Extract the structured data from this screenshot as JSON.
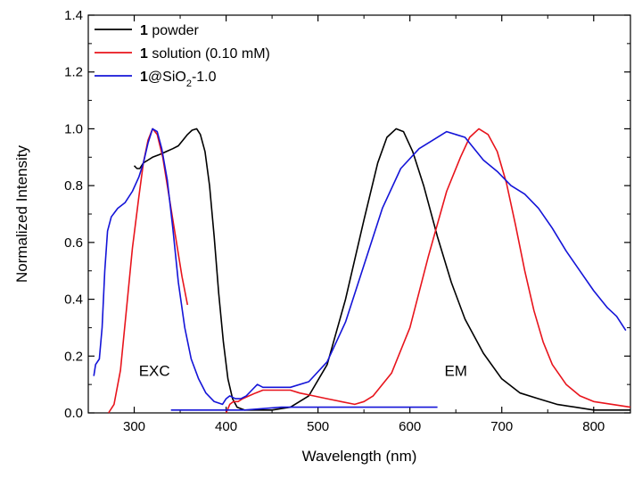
{
  "chart_data": {
    "type": "line",
    "title": "",
    "xlabel": "Wavelength (nm)",
    "ylabel": "Normalized Intensity",
    "xlim": [
      250,
      840
    ],
    "ylim": [
      0.0,
      1.4
    ],
    "x_ticks": [
      300,
      400,
      500,
      600,
      700,
      800
    ],
    "y_ticks": [
      0.0,
      0.2,
      0.4,
      0.6,
      0.8,
      1.0,
      1.2,
      1.4
    ],
    "x_tick_labels": [
      "300",
      "400",
      "500",
      "600",
      "700",
      "800"
    ],
    "y_tick_labels": [
      "0.0",
      "0.2",
      "0.4",
      "0.6",
      "0.8",
      "1.0",
      "1.2",
      "1.4"
    ],
    "grid": false,
    "legend_position": "top-left",
    "annotations": [
      {
        "text": "EXC",
        "x": 322,
        "y": 0.13
      },
      {
        "text": "EM",
        "x": 650,
        "y": 0.13
      }
    ],
    "series": [
      {
        "name": "powder",
        "legend_bold": "1",
        "legend_rest": "powder",
        "color": "#000000",
        "segments": [
          [
            [
              300,
              0.87
            ],
            [
              303,
              0.86
            ],
            [
              306,
              0.86
            ],
            [
              310,
              0.88
            ],
            [
              315,
              0.89
            ],
            [
              320,
              0.9
            ],
            [
              328,
              0.91
            ],
            [
              335,
              0.92
            ],
            [
              342,
              0.93
            ],
            [
              348,
              0.94
            ],
            [
              353,
              0.96
            ],
            [
              358,
              0.98
            ],
            [
              363,
              0.995
            ],
            [
              368,
              1.0
            ],
            [
              372,
              0.98
            ],
            [
              377,
              0.92
            ],
            [
              382,
              0.8
            ],
            [
              387,
              0.62
            ],
            [
              392,
              0.42
            ],
            [
              397,
              0.25
            ],
            [
              402,
              0.12
            ],
            [
              407,
              0.05
            ],
            [
              412,
              0.02
            ],
            [
              420,
              0.01
            ],
            [
              430,
              0.01
            ]
          ],
          [
            [
              430,
              0.01
            ],
            [
              450,
              0.01
            ],
            [
              470,
              0.02
            ],
            [
              490,
              0.06
            ],
            [
              510,
              0.17
            ],
            [
              530,
              0.4
            ],
            [
              550,
              0.68
            ],
            [
              565,
              0.88
            ],
            [
              575,
              0.97
            ],
            [
              585,
              1.0
            ],
            [
              593,
              0.99
            ],
            [
              603,
              0.92
            ],
            [
              615,
              0.8
            ],
            [
              630,
              0.62
            ],
            [
              645,
              0.46
            ],
            [
              660,
              0.33
            ],
            [
              680,
              0.21
            ],
            [
              700,
              0.12
            ],
            [
              720,
              0.07
            ],
            [
              740,
              0.05
            ],
            [
              760,
              0.03
            ],
            [
              780,
              0.02
            ],
            [
              800,
              0.01
            ],
            [
              820,
              0.01
            ],
            [
              840,
              0.01
            ]
          ]
        ]
      },
      {
        "name": "solution (0.10 mM)",
        "legend_bold": "1",
        "legend_rest": "solution (0.10 mM)",
        "color": "#e8141c",
        "segments": [
          [
            [
              272,
              0.0
            ],
            [
              278,
              0.03
            ],
            [
              285,
              0.15
            ],
            [
              292,
              0.38
            ],
            [
              298,
              0.58
            ],
            [
              305,
              0.76
            ],
            [
              310,
              0.88
            ],
            [
              315,
              0.96
            ],
            [
              320,
              1.0
            ],
            [
              325,
              0.98
            ],
            [
              331,
              0.9
            ],
            [
              338,
              0.76
            ],
            [
              345,
              0.62
            ],
            [
              352,
              0.48
            ],
            [
              358,
              0.38
            ]
          ],
          [
            [
              400,
              0.0
            ],
            [
              404,
              0.03
            ],
            [
              408,
              0.04
            ],
            [
              413,
              0.04
            ],
            [
              418,
              0.05
            ],
            [
              425,
              0.06
            ],
            [
              432,
              0.07
            ],
            [
              440,
              0.08
            ],
            [
              450,
              0.08
            ],
            [
              460,
              0.08
            ],
            [
              470,
              0.08
            ],
            [
              480,
              0.07
            ],
            [
              495,
              0.06
            ],
            [
              510,
              0.05
            ],
            [
              525,
              0.04
            ],
            [
              540,
              0.03
            ],
            [
              550,
              0.04
            ],
            [
              560,
              0.06
            ],
            [
              580,
              0.14
            ],
            [
              600,
              0.3
            ],
            [
              620,
              0.55
            ],
            [
              640,
              0.78
            ],
            [
              655,
              0.9
            ],
            [
              665,
              0.97
            ],
            [
              675,
              1.0
            ],
            [
              685,
              0.98
            ],
            [
              695,
              0.92
            ],
            [
              705,
              0.81
            ],
            [
              715,
              0.66
            ],
            [
              725,
              0.5
            ],
            [
              735,
              0.36
            ],
            [
              745,
              0.25
            ],
            [
              755,
              0.17
            ],
            [
              770,
              0.1
            ],
            [
              785,
              0.06
            ],
            [
              800,
              0.04
            ],
            [
              820,
              0.03
            ],
            [
              840,
              0.02
            ]
          ]
        ]
      },
      {
        "name": "SiO2-1.0",
        "legend_bold": "1",
        "legend_rest": "@SiO",
        "legend_sub": "2",
        "legend_tail": "-1.0",
        "color": "#1414d8",
        "segments": [
          [
            [
              256,
              0.13
            ],
            [
              258,
              0.17
            ],
            [
              262,
              0.19
            ],
            [
              265,
              0.3
            ],
            [
              268,
              0.5
            ],
            [
              271,
              0.64
            ],
            [
              275,
              0.69
            ],
            [
              282,
              0.72
            ],
            [
              290,
              0.74
            ],
            [
              298,
              0.78
            ],
            [
              305,
              0.83
            ],
            [
              310,
              0.88
            ],
            [
              315,
              0.95
            ],
            [
              320,
              1.0
            ],
            [
              325,
              0.99
            ],
            [
              330,
              0.93
            ],
            [
              336,
              0.82
            ],
            [
              342,
              0.65
            ],
            [
              348,
              0.46
            ],
            [
              355,
              0.3
            ],
            [
              362,
              0.19
            ],
            [
              370,
              0.12
            ],
            [
              378,
              0.07
            ],
            [
              387,
              0.04
            ],
            [
              396,
              0.03
            ],
            [
              400,
              0.05
            ],
            [
              404,
              0.06
            ],
            [
              410,
              0.05
            ],
            [
              416,
              0.05
            ],
            [
              422,
              0.06
            ],
            [
              428,
              0.08
            ],
            [
              434,
              0.1
            ],
            [
              440,
              0.09
            ],
            [
              450,
              0.09
            ],
            [
              460,
              0.09
            ],
            [
              470,
              0.09
            ],
            [
              490,
              0.11
            ],
            [
              510,
              0.18
            ],
            [
              530,
              0.32
            ],
            [
              550,
              0.52
            ],
            [
              570,
              0.72
            ],
            [
              590,
              0.86
            ],
            [
              610,
              0.93
            ],
            [
              625,
              0.96
            ],
            [
              640,
              0.99
            ],
            [
              650,
              0.98
            ],
            [
              660,
              0.97
            ],
            [
              670,
              0.93
            ],
            [
              680,
              0.89
            ],
            [
              695,
              0.85
            ],
            [
              710,
              0.8
            ],
            [
              725,
              0.77
            ],
            [
              740,
              0.72
            ],
            [
              755,
              0.65
            ],
            [
              770,
              0.57
            ],
            [
              785,
              0.5
            ],
            [
              800,
              0.43
            ],
            [
              815,
              0.37
            ],
            [
              825,
              0.34
            ],
            [
              835,
              0.29
            ]
          ],
          [
            [
              340,
              0.01
            ],
            [
              380,
              0.01
            ],
            [
              420,
              0.01
            ],
            [
              460,
              0.02
            ],
            [
              500,
              0.02
            ],
            [
              540,
              0.02
            ],
            [
              580,
              0.02
            ],
            [
              630,
              0.02
            ]
          ]
        ]
      }
    ]
  }
}
